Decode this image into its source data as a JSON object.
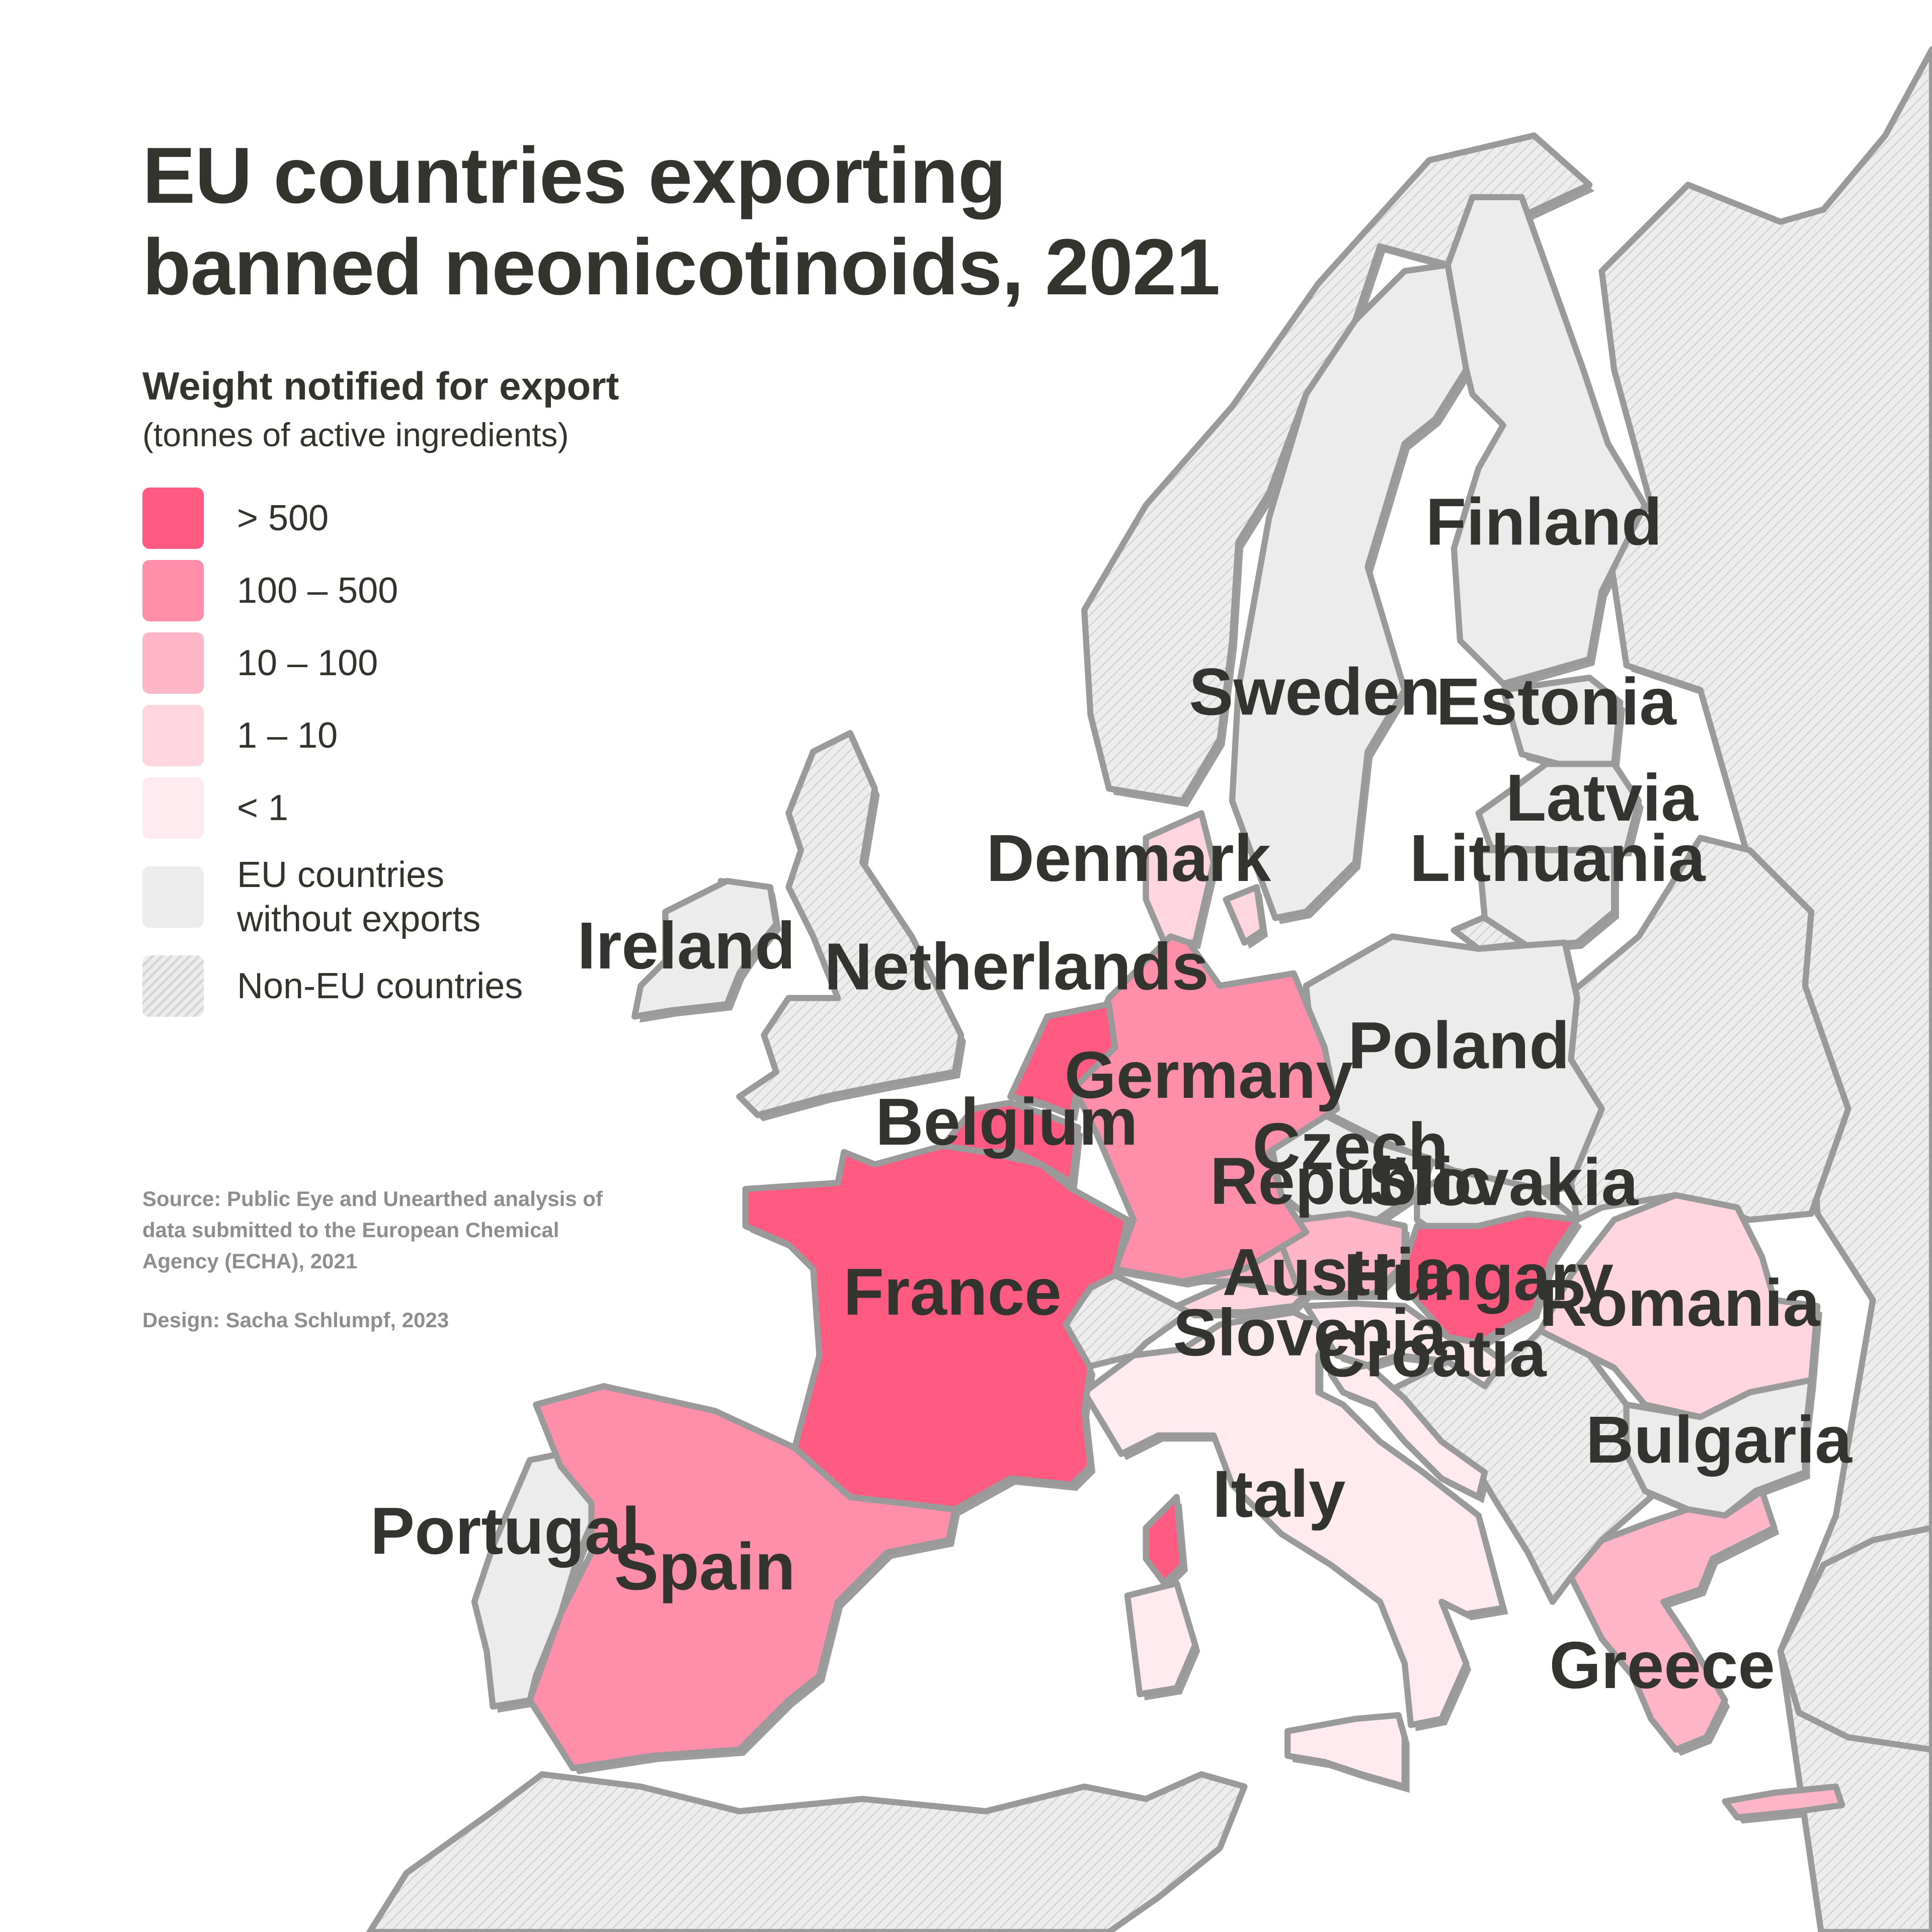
{
  "title": "EU countries exporting banned neonicotinoids, 2021",
  "legend": {
    "heading": "Weight notified for export",
    "subheading": "(tonnes of active ingredients)",
    "items": [
      {
        "label": "> 500",
        "color": "#ff5a82"
      },
      {
        "label": "100 – 500",
        "color": "#ff8eaa"
      },
      {
        "label": "10 – 100",
        "color": "#ffb5c8"
      },
      {
        "label": "1 – 10",
        "color": "#ffd6e0"
      },
      {
        "label": "< 1",
        "color": "#ffeaf0"
      },
      {
        "label": "EU countries without exports",
        "color": "#ececec"
      },
      {
        "label": "Non-EU countries",
        "color": "hatched grey"
      }
    ]
  },
  "countries": [
    {
      "name": "France",
      "category": "> 500"
    },
    {
      "name": "Netherlands",
      "category": "> 500"
    },
    {
      "name": "Belgium",
      "category": "> 500"
    },
    {
      "name": "Hungary",
      "category": "> 500"
    },
    {
      "name": "Germany",
      "category": "100 – 500"
    },
    {
      "name": "Spain",
      "category": "100 – 500"
    },
    {
      "name": "Austria",
      "category": "10 – 100"
    },
    {
      "name": "Greece",
      "category": "10 – 100"
    },
    {
      "name": "Denmark",
      "category": "1 – 10"
    },
    {
      "name": "Romania",
      "category": "1 – 10"
    },
    {
      "name": "Slovenia",
      "category": "1 – 10"
    },
    {
      "name": "Italy",
      "category": "< 1"
    },
    {
      "name": "Croatia",
      "category": "< 1"
    },
    {
      "name": "Ireland",
      "category": "EU countries without exports"
    },
    {
      "name": "Portugal",
      "category": "EU countries without exports"
    },
    {
      "name": "Sweden",
      "category": "EU countries without exports"
    },
    {
      "name": "Finland",
      "category": "EU countries without exports"
    },
    {
      "name": "Estonia",
      "category": "EU countries without exports"
    },
    {
      "name": "Latvia",
      "category": "EU countries without exports"
    },
    {
      "name": "Lithuania",
      "category": "EU countries without exports"
    },
    {
      "name": "Poland",
      "category": "EU countries without exports"
    },
    {
      "name": "Czech Republic",
      "category": "EU countries without exports"
    },
    {
      "name": "Slovakia",
      "category": "EU countries without exports"
    },
    {
      "name": "Bulgaria",
      "category": "EU countries without exports"
    }
  ],
  "labels": {
    "ireland": "Ireland",
    "netherlands": "Netherlands",
    "denmark": "Denmark",
    "sweden": "Sweden",
    "finland": "Finland",
    "estonia": "Estonia",
    "latvia": "Latvia",
    "lithuania": "Lithuania",
    "belgium": "Belgium",
    "germany": "Germany",
    "poland": "Poland",
    "czech_line1": "Czech",
    "czech_line2": "Republic",
    "slovakia": "Slovakia",
    "austria": "Austria",
    "hungary": "Hungary",
    "france": "France",
    "slovenia": "Slovenia",
    "croatia": "Croatia",
    "romania": "Romania",
    "bulgaria": "Bulgaria",
    "italy": "Italy",
    "portugal": "Portugal",
    "spain": "Spain",
    "greece": "Greece"
  },
  "source": "Source: Public Eye and Unearthed analysis of data submitted to the European Chemical Agency (ECHA), 2021",
  "design": "Design: Sacha Schlumpf, 2023"
}
